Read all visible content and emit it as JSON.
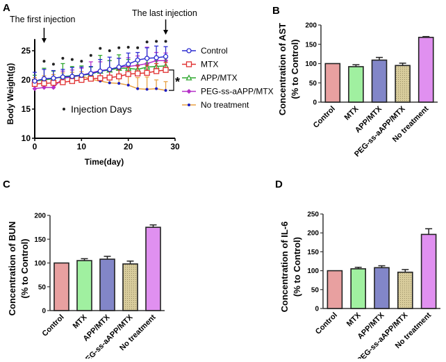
{
  "panels": {
    "a": "A",
    "b": "B",
    "c": "C",
    "d": "D"
  },
  "chart_data": [
    {
      "id": "A",
      "type": "line",
      "xlabel": "Time(day)",
      "ylabel": "Body Weight(g)",
      "xlim": [
        0,
        30
      ],
      "ylim": [
        10,
        27
      ],
      "xticks": [
        0,
        10,
        20,
        30
      ],
      "yticks": [
        10,
        15,
        20,
        25
      ],
      "x": [
        0,
        2,
        4,
        6,
        8,
        10,
        12,
        14,
        16,
        18,
        20,
        22,
        24,
        26,
        28
      ],
      "legend_position": "right",
      "series": [
        {
          "name": "Control",
          "color": "#2b2bd1",
          "marker": "circle-open",
          "values": [
            19.8,
            20.2,
            20.3,
            20.5,
            20.6,
            20.8,
            21.1,
            21.5,
            21.8,
            22.2,
            22.7,
            23.4,
            23.7,
            23.8,
            24.0
          ],
          "errors": [
            1.5,
            1.6,
            1.3,
            1.3,
            1.5,
            1.4,
            1.2,
            2.0,
            2.1,
            1.5,
            1.9,
            1.3,
            1.8,
            2.0,
            1.7
          ]
        },
        {
          "name": "MTX",
          "color": "#e03030",
          "marker": "square-open",
          "values": [
            19.3,
            19.4,
            19.5,
            19.6,
            19.8,
            20.0,
            20.2,
            20.3,
            20.4,
            20.6,
            21.0,
            21.1,
            21.2,
            21.5,
            21.7
          ],
          "errors": [
            0.8,
            0.9,
            0.9,
            1.0,
            1.0,
            1.0,
            1.0,
            1.1,
            1.1,
            1.2,
            1.2,
            1.3,
            1.3,
            1.3,
            1.3
          ]
        },
        {
          "name": "APP/MTX",
          "color": "#2fa82f",
          "marker": "triangle-open",
          "values": [
            19.8,
            20.0,
            20.2,
            20.6,
            20.7,
            20.8,
            21.0,
            21.5,
            21.7,
            22.0,
            22.0,
            21.8,
            22.2,
            22.3,
            22.4
          ],
          "errors": [
            1.0,
            2.0,
            1.3,
            2.2,
            1.6,
            1.6,
            1.2,
            2.7,
            1.6,
            2.3,
            1.5,
            1.4,
            1.4,
            1.5,
            1.4
          ]
        },
        {
          "name": "PEG-ss-aAPP/MTX",
          "color": "#b52fc8",
          "marker": "diamond",
          "values": [
            18.5,
            18.7,
            18.7,
            20.3,
            20.5,
            20.8,
            21.2,
            21.6,
            21.8,
            22.2,
            22.3,
            22.5,
            22.8,
            23.3,
            23.3
          ],
          "errors": [
            1.3,
            1.5,
            1.6,
            1.2,
            1.2,
            1.2,
            1.9,
            1.5,
            1.5,
            1.5,
            1.5,
            1.6,
            2.8,
            1.4,
            1.3
          ]
        },
        {
          "name": "No treatment",
          "color": "#1c1cc0",
          "line_color": "#e8a040",
          "marker": "dot",
          "values": [
            19.8,
            20.1,
            20.3,
            20.5,
            20.6,
            20.7,
            20.1,
            19.8,
            19.5,
            19.4,
            19.1,
            18.5,
            18.4,
            18.5,
            18.2
          ],
          "errors": [
            0.6,
            0.6,
            0.6,
            0.7,
            0.7,
            0.7,
            0.7,
            0.8,
            0.9,
            1.0,
            1.6,
            1.9,
            2.1,
            1.5,
            1.5
          ]
        }
      ],
      "injection_days": {
        "label": "Injection Days",
        "x": [
          2,
          4,
          6,
          8,
          10,
          12,
          14,
          16,
          18,
          20,
          22,
          24,
          26,
          28
        ],
        "y": [
          23.2,
          22.7,
          23.7,
          23.5,
          23.2,
          24.2,
          25.4,
          25.0,
          25.5,
          25.6,
          25.5,
          26.5,
          26.6,
          26.6
        ]
      },
      "annotations": {
        "first": "The first injection",
        "last": "The last injection",
        "significance": "*"
      }
    },
    {
      "id": "B",
      "type": "bar",
      "ylabel_lines": [
        "Concentration of AST",
        "(% to Control)"
      ],
      "categories": [
        "Control",
        "MTX",
        "APP/MTX",
        "PEG-ss-aAPP/MTX",
        "No treatment"
      ],
      "values": [
        100,
        92,
        109,
        95,
        168
      ],
      "errors": [
        0,
        5,
        7,
        6,
        2
      ],
      "ylim": [
        0,
        200
      ],
      "yticks": [
        0,
        50,
        100,
        150,
        200
      ],
      "colors": [
        "#e8a0a0",
        "#a0f0a0",
        "#8286c8",
        "#d8cc9c",
        "#e090f0"
      ]
    },
    {
      "id": "C",
      "type": "bar",
      "ylabel_lines": [
        "Concentration of BUN",
        "(% to Control)"
      ],
      "categories": [
        "Control",
        "MTX",
        "APP/MTX",
        "PEG-ss-aAPP/MTX",
        "No treatment"
      ],
      "values": [
        100,
        105,
        108,
        98,
        175
      ],
      "errors": [
        0,
        4,
        6,
        6,
        5
      ],
      "ylim": [
        0,
        200
      ],
      "yticks": [
        0,
        50,
        100,
        150,
        200
      ],
      "colors": [
        "#e8a0a0",
        "#a0f0a0",
        "#8286c8",
        "#d8cc9c",
        "#e090f0"
      ]
    },
    {
      "id": "D",
      "type": "bar",
      "ylabel_lines": [
        "Concentration of IL-6",
        "(% to Control)"
      ],
      "categories": [
        "Control",
        "MTX",
        "APP/MTX",
        "PEG-ss-aAPP/MTX",
        "No treatment"
      ],
      "values": [
        100,
        105,
        108,
        96,
        196
      ],
      "errors": [
        0,
        4,
        5,
        7,
        15
      ],
      "ylim": [
        0,
        250
      ],
      "yticks": [
        0,
        50,
        100,
        150,
        200,
        250
      ],
      "colors": [
        "#e8a0a0",
        "#a0f0a0",
        "#8286c8",
        "#d8cc9c",
        "#e090f0"
      ]
    }
  ]
}
